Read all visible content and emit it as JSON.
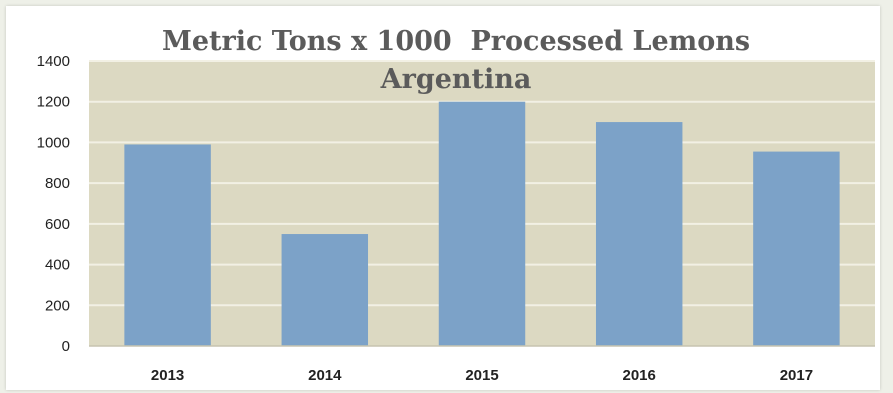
{
  "chart_data": {
    "type": "bar",
    "title": "Metric Tons x 1000  Processed Lemons",
    "subtitle": "Argentina",
    "categories": [
      "2013",
      "2014",
      "2015",
      "2016",
      "2017"
    ],
    "values": [
      990,
      550,
      1200,
      1100,
      955
    ],
    "ylim": [
      0,
      1400
    ],
    "yticks": [
      0,
      200,
      400,
      600,
      800,
      1000,
      1200,
      1400
    ],
    "grid": true,
    "legend": "none",
    "colors": {
      "bar": "#7ca2c8",
      "plot_background": "#dcd9c2",
      "gridline": "#f2f0e4",
      "title": "#5b5b5b"
    }
  }
}
